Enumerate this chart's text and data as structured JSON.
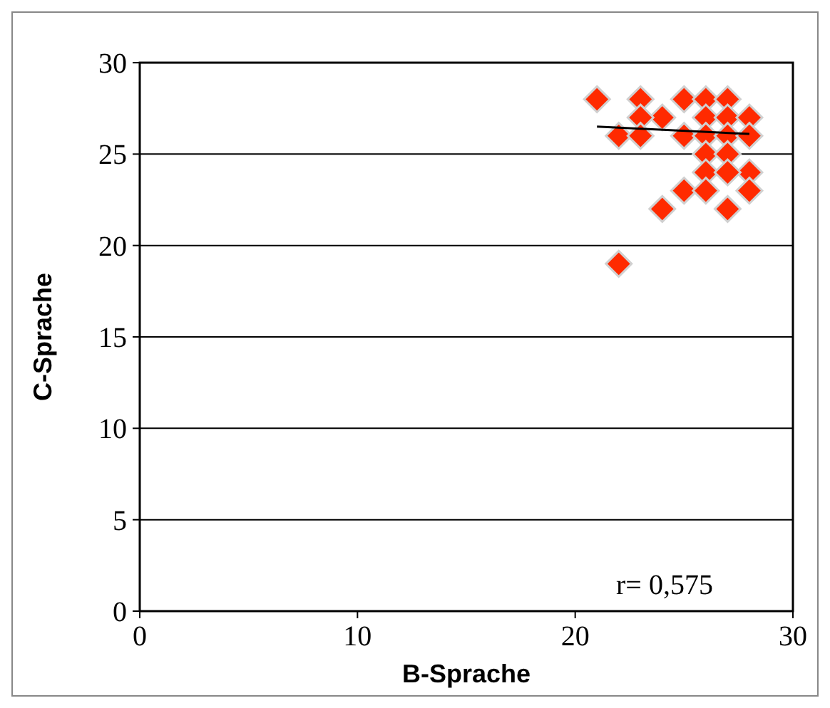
{
  "chart_data": {
    "type": "scatter",
    "xlabel": "B-Sprache",
    "ylabel": "C-Sprache",
    "xlim": [
      0,
      30
    ],
    "xticks": [
      0,
      10,
      20,
      30
    ],
    "ylim": [
      0,
      30
    ],
    "yticks": [
      0,
      5,
      10,
      15,
      20,
      25,
      30
    ],
    "grid": "y",
    "marker": "diamond",
    "annotations": [
      "r= 0,575"
    ],
    "series": [
      {
        "color": "#ff2a00",
        "x": [
          21,
          23,
          25,
          26,
          27,
          24,
          23,
          26,
          27,
          28,
          22,
          23,
          25,
          26,
          27,
          28,
          26,
          27,
          26,
          28,
          27,
          25,
          26,
          28,
          24,
          27,
          22
        ],
        "values": [
          28,
          28,
          28,
          28,
          28,
          27,
          27,
          27,
          27,
          27,
          26,
          26,
          26,
          26,
          26,
          26,
          25,
          25,
          24,
          24,
          24,
          23,
          23,
          23,
          22,
          22,
          19
        ]
      },
      {
        "type": "line",
        "color": "#000000",
        "marker": "none",
        "x": [
          21,
          28
        ],
        "values": [
          26.5,
          26.1
        ]
      }
    ]
  }
}
